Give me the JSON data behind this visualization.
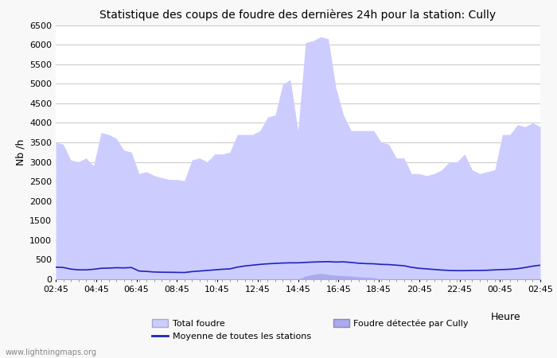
{
  "title": "Statistique des coups de foudre des dernières 24h pour la station: Cully",
  "xlabel": "Heure",
  "ylabel": "Nb /h",
  "ylim": [
    0,
    6500
  ],
  "yticks": [
    0,
    500,
    1000,
    1500,
    2000,
    2500,
    3000,
    3500,
    4000,
    4500,
    5000,
    5500,
    6000,
    6500
  ],
  "x_labels": [
    "02:45",
    "04:45",
    "06:45",
    "08:45",
    "10:45",
    "12:45",
    "14:45",
    "16:45",
    "18:45",
    "20:45",
    "22:45",
    "00:45",
    "02:45"
  ],
  "watermark": "www.lightningmaps.org",
  "legend_row1": [
    {
      "label": "Total foudre",
      "color": "#ccccff",
      "type": "fill"
    },
    {
      "label": "Moyenne de toutes les stations",
      "color": "#2222bb",
      "type": "line"
    }
  ],
  "legend_row2": [
    {
      "label": "Foudre détectée par Cully",
      "color": "#aaaaee",
      "type": "fill"
    }
  ],
  "total_foudre": [
    3500,
    3450,
    3050,
    3000,
    3100,
    2900,
    3750,
    3700,
    3600,
    3300,
    3250,
    2700,
    2750,
    2650,
    2600,
    2550,
    2550,
    2520,
    3050,
    3100,
    3000,
    3200,
    3200,
    3250,
    3700,
    3700,
    3700,
    3800,
    4150,
    4200,
    5000,
    5100,
    3800,
    6050,
    6100,
    6200,
    6150,
    4900,
    4200,
    3800,
    3800,
    3800,
    3800,
    3500,
    3450,
    3100,
    3100,
    2700,
    2700,
    2650,
    2700,
    2800,
    3000,
    3000,
    3200,
    2800,
    2700,
    2750,
    2800,
    3700,
    3700,
    3950,
    3900,
    4000,
    3900
  ],
  "cully_foudre": [
    0,
    0,
    0,
    0,
    0,
    0,
    0,
    0,
    0,
    0,
    0,
    0,
    0,
    0,
    0,
    0,
    0,
    0,
    0,
    0,
    0,
    0,
    0,
    0,
    0,
    0,
    0,
    0,
    0,
    0,
    0,
    0,
    0,
    80,
    120,
    150,
    120,
    100,
    90,
    80,
    60,
    50,
    40,
    0,
    0,
    0,
    0,
    0,
    0,
    0,
    0,
    0,
    0,
    0,
    0,
    0,
    0,
    0,
    0,
    0,
    0,
    0,
    0,
    0,
    0
  ],
  "moyenne": [
    310,
    300,
    260,
    240,
    240,
    255,
    280,
    285,
    295,
    290,
    300,
    210,
    200,
    185,
    180,
    178,
    175,
    172,
    195,
    210,
    225,
    240,
    255,
    265,
    310,
    340,
    360,
    380,
    395,
    405,
    415,
    420,
    420,
    430,
    440,
    445,
    450,
    440,
    445,
    430,
    410,
    400,
    395,
    380,
    375,
    360,
    345,
    305,
    280,
    265,
    250,
    235,
    225,
    220,
    220,
    225,
    225,
    230,
    240,
    248,
    255,
    270,
    300,
    335,
    360
  ],
  "bg_color": "#f8f8f8",
  "plot_bg_color": "#ffffff",
  "grid_color": "#cccccc",
  "total_fill_color": "#ccccff",
  "cully_fill_color": "#aaaaee",
  "mean_line_color": "#2222bb"
}
